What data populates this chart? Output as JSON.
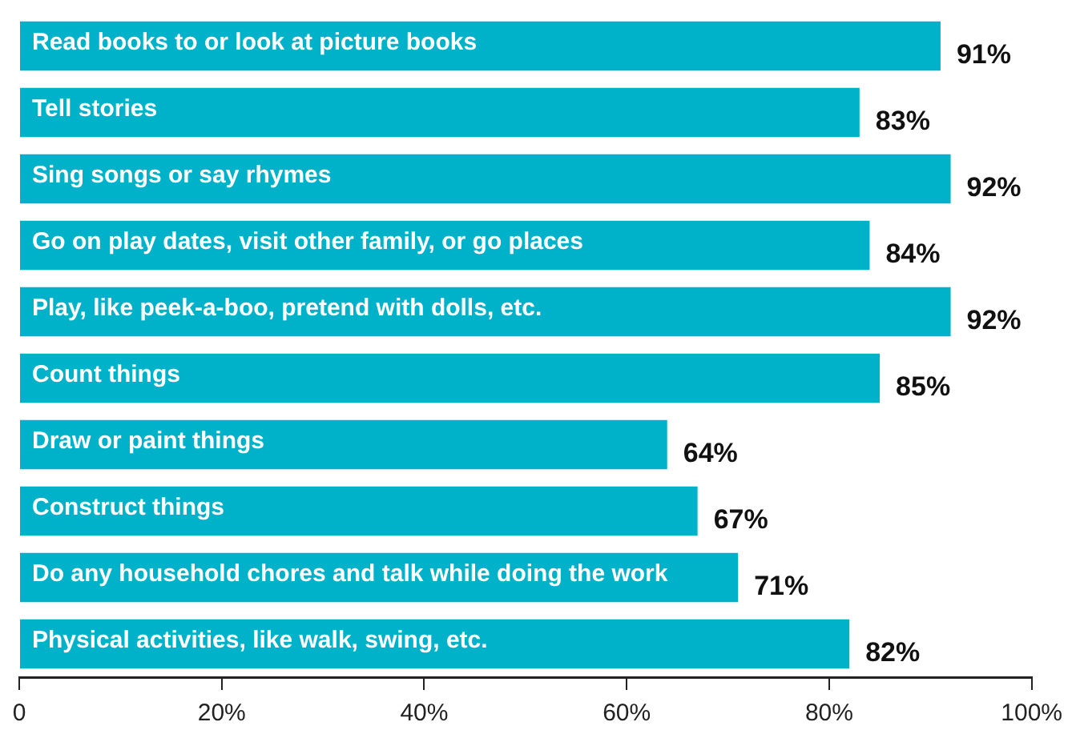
{
  "chart_data": {
    "type": "bar",
    "orientation": "horizontal",
    "categories": [
      "Read books to or look at picture books",
      "Tell stories",
      "Sing songs or say rhymes",
      "Go on play dates, visit other family, or go places",
      "Play, like peek-a-boo, pretend with dolls, etc.",
      "Count things",
      "Draw or paint things",
      "Construct things",
      "Do any household chores and talk while doing the work",
      "Physical activities, like walk, swing, etc."
    ],
    "values": [
      91,
      83,
      92,
      84,
      92,
      85,
      64,
      67,
      71,
      82
    ],
    "value_labels": [
      "91%",
      "83%",
      "92%",
      "84%",
      "92%",
      "85%",
      "64%",
      "67%",
      "71%",
      "82%"
    ],
    "color": "#00b2c9",
    "xlim": [
      0,
      100
    ],
    "xticks": [
      0,
      {
        "value": 20,
        "label": "20%"
      },
      {
        "value": 40,
        "label": "40%"
      },
      {
        "value": 60,
        "label": "60%"
      },
      {
        "value": 80,
        "label": "80%"
      },
      {
        "value": 100,
        "label": "100%"
      }
    ],
    "grid": false,
    "legend": false
  }
}
